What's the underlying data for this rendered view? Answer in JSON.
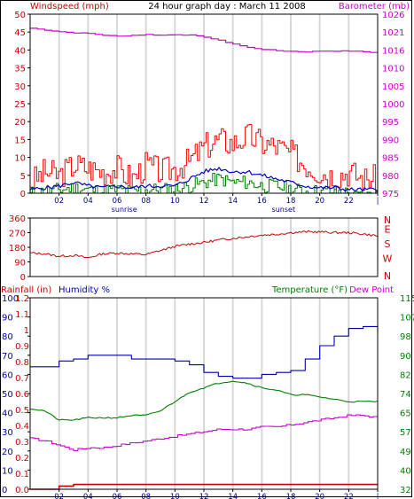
{
  "chart_data": [
    {
      "type": "line",
      "title": "24 hour graph day : March 11 2008",
      "ylabel": "Windspeed (mph)",
      "y2label": "Barometer (mb)",
      "x_ticks": [
        "02",
        "04",
        "06",
        "08",
        "10",
        "12",
        "14",
        "16",
        "18",
        "20",
        "22",
        "|"
      ],
      "x_markers": [
        "sunrise",
        "sunset"
      ],
      "ylim": [
        0,
        50
      ],
      "yticks": [
        "0",
        "5",
        "10",
        "15",
        "20",
        "25",
        "30",
        "35",
        "40",
        "45",
        "50"
      ],
      "y2lim": [
        975,
        1026
      ],
      "y2ticks": [
        "975",
        "980",
        "985",
        "990",
        "995",
        "1000",
        "1005",
        "1010",
        "1016",
        "1021",
        "1026"
      ],
      "grid": "vertical",
      "colors": {
        "gust": "#ff0000",
        "average": "#0000cc",
        "wind": "#008000",
        "barometer": "#cc00cc",
        "axis_left": "#cc0000",
        "axis_right": "#cc00cc"
      },
      "series": [
        {
          "key": "gust",
          "x": [
            0,
            1,
            2,
            3,
            4,
            5,
            6,
            7,
            8,
            9,
            10,
            11,
            12,
            13,
            14,
            15,
            16,
            17,
            18,
            19,
            20,
            21,
            22,
            23,
            24
          ],
          "values": [
            3,
            6,
            5,
            8,
            7,
            6,
            7,
            4,
            8,
            6,
            7,
            9,
            13,
            15,
            14,
            16,
            14,
            13,
            11,
            8,
            6,
            5,
            6,
            4,
            4
          ]
        },
        {
          "key": "average",
          "x": [
            0,
            1,
            2,
            3,
            4,
            5,
            6,
            7,
            8,
            9,
            10,
            11,
            12,
            13,
            14,
            15,
            16,
            17,
            18,
            19,
            20,
            21,
            22,
            23,
            24
          ],
          "values": [
            1,
            1.5,
            2,
            3,
            2,
            1.5,
            2,
            1.5,
            2,
            2,
            2,
            4,
            6,
            7,
            6,
            6,
            5,
            4,
            3,
            2,
            1.5,
            1.5,
            1,
            1,
            1
          ]
        },
        {
          "key": "wind",
          "x": [
            0,
            1,
            2,
            3,
            4,
            5,
            6,
            7,
            8,
            9,
            10,
            11,
            12,
            13,
            14,
            15,
            16,
            17,
            18,
            19,
            20,
            21,
            22,
            23,
            24
          ],
          "values": [
            0,
            0.5,
            1,
            1.5,
            1,
            0.5,
            1,
            0.5,
            1,
            1,
            1,
            2,
            3,
            4,
            3,
            3,
            2,
            2,
            1,
            0.5,
            0.5,
            0.5,
            0,
            0,
            0
          ]
        },
        {
          "key": "barometer",
          "x": [
            0,
            1,
            2,
            3,
            4,
            5,
            6,
            7,
            8,
            9,
            10,
            11,
            12,
            13,
            14,
            15,
            16,
            17,
            18,
            19,
            20,
            21,
            22,
            23,
            24
          ],
          "values": [
            1022,
            1021.5,
            1021,
            1020.7,
            1020.5,
            1020,
            1019.7,
            1020,
            1020.2,
            1020,
            1020.2,
            1020,
            1019.5,
            1018.5,
            1017.5,
            1016.5,
            1016,
            1015.6,
            1015.4,
            1015.3,
            1015.5,
            1015.5,
            1015.5,
            1015.3,
            1015
          ]
        }
      ]
    },
    {
      "type": "line",
      "ylabel": "",
      "ylim": [
        0,
        360
      ],
      "yticks": [
        "0",
        "90",
        "180",
        "270",
        "360"
      ],
      "y2ticks": [
        "N",
        "W",
        "S",
        "E",
        "N"
      ],
      "grid": "vertical",
      "colors": {
        "direction": "#cc0000",
        "axis": "#cc0000"
      },
      "series": [
        {
          "key": "direction",
          "x": [
            0,
            1,
            2,
            3,
            4,
            5,
            6,
            7,
            8,
            9,
            10,
            11,
            12,
            13,
            14,
            15,
            16,
            17,
            18,
            19,
            20,
            21,
            22,
            23,
            24
          ],
          "values": [
            145,
            140,
            125,
            130,
            115,
            140,
            145,
            140,
            135,
            160,
            185,
            200,
            210,
            225,
            235,
            245,
            255,
            260,
            270,
            275,
            275,
            270,
            270,
            262,
            250
          ]
        }
      ]
    },
    {
      "type": "line",
      "labels": {
        "rain": "Rainfall (in)",
        "humidity": "Humidity %",
        "temperature": "Temperature (°F)",
        "dewpoint": "Dew Point"
      },
      "x_ticks": [
        "02",
        "04",
        "06",
        "08",
        "10",
        "12",
        "14",
        "16",
        "18",
        "20",
        "22",
        "|"
      ],
      "x_markers": [
        "sunrise",
        "sunset"
      ],
      "humidity_ticks": [
        "0",
        "10",
        "20",
        "30",
        "40",
        "50",
        "60",
        "70",
        "80",
        "90",
        "100"
      ],
      "rain_ticks": [
        "0.0",
        "0.1",
        "0.2",
        "0.3",
        "0.4",
        "0.5",
        "0.6",
        "0.7",
        "0.8",
        "0.9",
        "1",
        "1.1",
        "1.2"
      ],
      "temp_ticks": [
        "32",
        "40",
        "49",
        "57",
        "65",
        "74",
        "82",
        "90",
        "98",
        "107",
        "115"
      ],
      "ylim_humidity": [
        0,
        100
      ],
      "ylim_rain": [
        0,
        1.2
      ],
      "ylim_temp": [
        32,
        115
      ],
      "grid": "vertical",
      "colors": {
        "rain": "#cc0000",
        "humidity": "#0000aa",
        "temperature": "#008000",
        "dewpoint": "#cc00cc",
        "temp_axis": "#008000"
      },
      "series": [
        {
          "key": "humidity",
          "x": [
            0,
            1,
            2,
            3,
            4,
            5,
            6,
            7,
            8,
            9,
            10,
            11,
            12,
            13,
            14,
            15,
            16,
            17,
            18,
            19,
            20,
            21,
            22,
            23,
            24
          ],
          "values": [
            64,
            64,
            67,
            68,
            70,
            70,
            70,
            68,
            68,
            68,
            67,
            65,
            61,
            59,
            58,
            58,
            60,
            61,
            62,
            68,
            75,
            80,
            84,
            85,
            82
          ]
        },
        {
          "key": "temperature",
          "x": [
            0,
            1,
            2,
            3,
            4,
            5,
            6,
            7,
            8,
            9,
            10,
            11,
            12,
            13,
            14,
            15,
            16,
            17,
            18,
            19,
            20,
            21,
            22,
            23,
            24
          ],
          "values": [
            67,
            66,
            62,
            62,
            63,
            63,
            63,
            64,
            64,
            66,
            70,
            74,
            76,
            78,
            79,
            78,
            76,
            75,
            73,
            73,
            72,
            71,
            70,
            70,
            70
          ]
        },
        {
          "key": "dewpoint",
          "x": [
            0,
            1,
            2,
            3,
            4,
            5,
            6,
            7,
            8,
            9,
            10,
            11,
            12,
            13,
            14,
            15,
            16,
            17,
            18,
            19,
            20,
            21,
            22,
            23,
            24
          ],
          "values": [
            54,
            53,
            51,
            49,
            50,
            50,
            51,
            52,
            53,
            54,
            55,
            56,
            57,
            58,
            58,
            58,
            59,
            59,
            60,
            61,
            62,
            63,
            64,
            64,
            63
          ]
        },
        {
          "key": "rain",
          "x": [
            0,
            1,
            2,
            3,
            4,
            5,
            6,
            7,
            8,
            9,
            10,
            11,
            12,
            13,
            14,
            15,
            16,
            17,
            18,
            19,
            20,
            21,
            22,
            23,
            24
          ],
          "values": [
            0,
            0,
            0.02,
            0.03,
            0.03,
            0.03,
            0.03,
            0.03,
            0.03,
            0.03,
            0.03,
            0.03,
            0.03,
            0.03,
            0.03,
            0.03,
            0.03,
            0.03,
            0.03,
            0.03,
            0.03,
            0.03,
            0.03,
            0.03,
            0.03
          ]
        }
      ]
    }
  ]
}
